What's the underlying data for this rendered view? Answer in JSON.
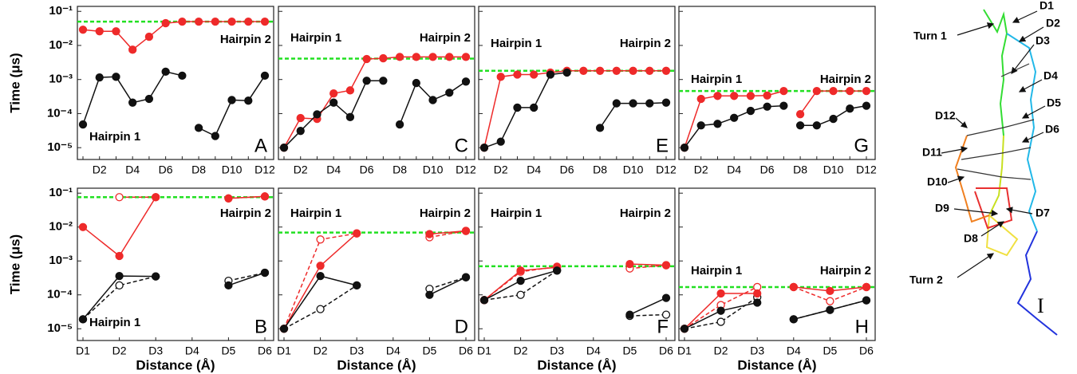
{
  "chart_data": [
    {
      "type": "line",
      "panel_label": "A",
      "annotations": [
        "Hairpin 2",
        "Hairpin 1"
      ],
      "ylabel": "Time (μs)",
      "categories": [
        null,
        "D2",
        null,
        "D4",
        null,
        "D6",
        null,
        "D8",
        null,
        "D10",
        null,
        "D12"
      ],
      "log_y": true,
      "ylim": [
        4.5e-06,
        0.14
      ],
      "show_ytick_labels": true,
      "yticks": [
        {
          "value": 0.1,
          "label": "10⁻¹"
        },
        {
          "value": 0.01,
          "label": "10⁻²"
        },
        {
          "value": 0.001,
          "label": "10⁻³"
        },
        {
          "value": 0.0001,
          "label": "10⁻⁴"
        },
        {
          "value": 1e-05,
          "label": "10⁻⁵"
        }
      ],
      "reference_line": {
        "value": 0.05,
        "color": "#22e022"
      },
      "series": [
        {
          "color": "#ee2a2a",
          "style": "solid",
          "marker": "filled",
          "values": [
            0.029,
            0.026,
            0.026,
            0.0075,
            0.018,
            0.045,
            0.05,
            0.05,
            0.05,
            0.05,
            0.05,
            0.05
          ]
        },
        {
          "color": "#111111",
          "style": "solid",
          "marker": "filled",
          "values": [
            4.8e-05,
            0.00115,
            0.0012,
            0.00021,
            0.00027,
            0.0017,
            0.0013,
            null,
            null,
            null,
            null,
            null
          ]
        },
        {
          "color": "#111111",
          "style": "solid",
          "marker": "filled",
          "values": [
            null,
            null,
            null,
            null,
            null,
            null,
            null,
            3.8e-05,
            2.2e-05,
            0.00025,
            0.00024,
            0.0013
          ]
        }
      ]
    },
    {
      "type": "line",
      "panel_label": "B",
      "annotations": [
        "Hairpin 2",
        "Hairpin 1"
      ],
      "ylabel": "Time (μs)",
      "xlabel": "Distance (Å)",
      "categories": [
        "D1",
        "D2",
        "D3",
        "D4",
        "D5",
        "D6"
      ],
      "log_y": true,
      "ylim": [
        4.5e-06,
        0.14
      ],
      "show_ytick_labels": true,
      "yticks": [
        {
          "value": 0.1,
          "label": "10⁻¹"
        },
        {
          "value": 0.01,
          "label": "10⁻²"
        },
        {
          "value": 0.001,
          "label": "10⁻³"
        },
        {
          "value": 0.0001,
          "label": "10⁻⁴"
        },
        {
          "value": 1e-05,
          "label": "10⁻⁵"
        }
      ],
      "reference_line": {
        "value": 0.076,
        "color": "#22e022"
      },
      "series": [
        {
          "color": "#ee2a2a",
          "style": "dashed",
          "marker": "open",
          "values": [
            null,
            0.076,
            0.076,
            null,
            0.07,
            0.08
          ]
        },
        {
          "color": "#111111",
          "style": "dashed",
          "marker": "open",
          "values": [
            1.9e-05,
            0.00019,
            0.00035,
            null,
            0.00026,
            0.00045
          ]
        },
        {
          "color": "#ee2a2a",
          "style": "solid",
          "marker": "filled",
          "values": [
            0.01,
            0.0014,
            0.076,
            null,
            0.07,
            0.08
          ]
        },
        {
          "color": "#111111",
          "style": "solid",
          "marker": "filled",
          "values": [
            1.9e-05,
            0.00036,
            0.00035,
            null,
            0.00019,
            0.00045
          ]
        }
      ]
    },
    {
      "type": "line",
      "panel_label": "C",
      "annotations": [
        "Hairpin 1",
        "Hairpin 2"
      ],
      "categories": [
        null,
        "D2",
        null,
        "D4",
        null,
        "D6",
        null,
        "D8",
        null,
        "D10",
        null,
        "D12"
      ],
      "log_y": true,
      "ylim": [
        4.5e-06,
        0.14
      ],
      "show_ytick_labels": false,
      "yticks": [
        0.1,
        0.01,
        0.001,
        0.0001,
        1e-05
      ],
      "reference_line": {
        "value": 0.0041,
        "color": "#22e022"
      },
      "series": [
        {
          "color": "#ee2a2a",
          "style": "solid",
          "marker": "filled",
          "values": [
            1e-05,
            7.4e-05,
            7e-05,
            0.00039,
            0.00048,
            0.004,
            0.0042,
            0.0046,
            0.0046,
            0.0046,
            0.0046,
            0.0046
          ]
        },
        {
          "color": "#111111",
          "style": "solid",
          "marker": "filled",
          "values": [
            1e-05,
            3.1e-05,
            9.5e-05,
            0.00021,
            7.9e-05,
            0.00092,
            0.00092,
            null,
            null,
            null,
            null,
            null
          ]
        },
        {
          "color": "#111111",
          "style": "solid",
          "marker": "filled",
          "values": [
            null,
            null,
            null,
            null,
            null,
            null,
            null,
            4.8e-05,
            0.00079,
            0.00025,
            0.00041,
            0.00087
          ]
        }
      ]
    },
    {
      "type": "line",
      "panel_label": "D",
      "annotations": [
        "Hairpin 1",
        "Hairpin 2"
      ],
      "xlabel": "Distance (Å)",
      "categories": [
        "D1",
        "D2",
        "D3",
        "D4",
        "D5",
        "D6"
      ],
      "log_y": true,
      "ylim": [
        4.5e-06,
        0.14
      ],
      "show_ytick_labels": false,
      "yticks": [
        0.1,
        0.01,
        0.001,
        0.0001,
        1e-05
      ],
      "reference_line": {
        "value": 0.0069,
        "color": "#22e022"
      },
      "series": [
        {
          "color": "#ee2a2a",
          "style": "dashed",
          "marker": "open",
          "values": [
            1e-05,
            0.0043,
            0.0065,
            null,
            0.005,
            0.0077
          ]
        },
        {
          "color": "#111111",
          "style": "dashed",
          "marker": "open",
          "values": [
            1e-05,
            3.8e-05,
            0.00019,
            null,
            0.00015,
            0.00033
          ]
        },
        {
          "color": "#ee2a2a",
          "style": "solid",
          "marker": "filled",
          "values": [
            1e-05,
            0.00072,
            0.0065,
            null,
            0.0062,
            0.0077
          ]
        },
        {
          "color": "#111111",
          "style": "solid",
          "marker": "filled",
          "values": [
            1e-05,
            0.00036,
            0.00019,
            null,
            0.0001,
            0.00033
          ]
        }
      ]
    },
    {
      "type": "line",
      "panel_label": "E",
      "annotations": [
        "Hairpin 1",
        "Hairpin 2"
      ],
      "categories": [
        null,
        "D2",
        null,
        "D4",
        null,
        "D6",
        null,
        "D8",
        null,
        "D10",
        null,
        "D12"
      ],
      "log_y": true,
      "ylim": [
        4.5e-06,
        0.14
      ],
      "show_ytick_labels": false,
      "yticks": [
        0.1,
        0.01,
        0.001,
        0.0001,
        1e-05
      ],
      "reference_line": {
        "value": 0.0018,
        "color": "#22e022"
      },
      "series": [
        {
          "color": "#ee2a2a",
          "style": "solid",
          "marker": "filled",
          "values": [
            1e-05,
            0.0012,
            0.0014,
            0.0014,
            0.0016,
            0.0018,
            0.0018,
            0.0018,
            0.0018,
            0.0018,
            0.0018,
            0.0018
          ]
        },
        {
          "color": "#111111",
          "style": "solid",
          "marker": "filled",
          "values": [
            1e-05,
            1.5e-05,
            0.00015,
            0.00015,
            0.0014,
            0.0016,
            null,
            null,
            null,
            null,
            null,
            null
          ]
        },
        {
          "color": "#111111",
          "style": "solid",
          "marker": "filled",
          "values": [
            null,
            null,
            null,
            null,
            null,
            null,
            null,
            3.8e-05,
            0.0002,
            0.0002,
            0.0002,
            0.00021
          ]
        }
      ]
    },
    {
      "type": "line",
      "panel_label": "F",
      "annotations": [
        "Hairpin 1",
        "Hairpin 2"
      ],
      "xlabel": "Distance (Å)",
      "categories": [
        "D1",
        "D2",
        "D3",
        "D4",
        "D5",
        "D6"
      ],
      "log_y": true,
      "ylim": [
        4.5e-06,
        0.14
      ],
      "show_ytick_labels": false,
      "yticks": [
        0.1,
        0.01,
        0.001,
        0.0001,
        1e-05
      ],
      "reference_line": {
        "value": 0.0007,
        "color": "#22e022"
      },
      "series": [
        {
          "color": "#ee2a2a",
          "style": "dashed",
          "marker": "open",
          "values": [
            7e-05,
            0.00048,
            0.00068,
            null,
            0.0006,
            0.00075
          ]
        },
        {
          "color": "#111111",
          "style": "dashed",
          "marker": "open",
          "values": [
            7e-05,
            0.0001,
            0.00052,
            null,
            2.4e-05,
            2.6e-05
          ]
        },
        {
          "color": "#ee2a2a",
          "style": "solid",
          "marker": "filled",
          "values": [
            7e-05,
            0.00052,
            0.00065,
            null,
            0.00081,
            0.00075
          ]
        },
        {
          "color": "#111111",
          "style": "solid",
          "marker": "filled",
          "values": [
            7e-05,
            0.00026,
            0.00052,
            null,
            2.6e-05,
            8.1e-05
          ]
        }
      ]
    },
    {
      "type": "line",
      "panel_label": "G",
      "annotations": [
        "Hairpin 1",
        "Hairpin 2"
      ],
      "categories": [
        null,
        "D2",
        null,
        "D4",
        null,
        "D6",
        null,
        "D8",
        null,
        "D10",
        null,
        "D12"
      ],
      "log_y": true,
      "ylim": [
        4.5e-06,
        0.14
      ],
      "show_ytick_labels": false,
      "yticks": [
        0.1,
        0.01,
        0.001,
        0.0001,
        1e-05
      ],
      "reference_line": {
        "value": 0.00046,
        "color": "#22e022"
      },
      "series": [
        {
          "color": "#ee2a2a",
          "style": "solid",
          "marker": "filled",
          "values": [
            1e-05,
            0.00027,
            0.00033,
            0.00033,
            0.00033,
            0.00034,
            0.00046,
            null,
            null,
            null,
            null,
            null
          ]
        },
        {
          "color": "#ee2a2a",
          "style": "solid",
          "marker": "filled",
          "values": [
            null,
            null,
            null,
            null,
            null,
            null,
            null,
            9.6e-05,
            0.00046,
            0.00046,
            0.00046,
            0.00046
          ]
        },
        {
          "color": "#111111",
          "style": "solid",
          "marker": "filled",
          "values": [
            1e-05,
            4.5e-05,
            5e-05,
            7.5e-05,
            0.00012,
            0.00016,
            0.00017,
            null,
            null,
            null,
            null,
            null
          ]
        },
        {
          "color": "#111111",
          "style": "solid",
          "marker": "filled",
          "values": [
            null,
            null,
            null,
            null,
            null,
            null,
            null,
            4.5e-05,
            4.5e-05,
            7e-05,
            0.00014,
            0.00017
          ]
        }
      ]
    },
    {
      "type": "line",
      "panel_label": "H",
      "annotations": [
        "Hairpin 1",
        "Hairpin 2"
      ],
      "xlabel": "Distance (Å)",
      "categories": [
        "D1",
        "D2",
        "D3",
        "D4",
        "D5",
        "D6"
      ],
      "log_y": true,
      "ylim": [
        4.5e-06,
        0.14
      ],
      "show_ytick_labels": false,
      "yticks": [
        0.1,
        0.01,
        0.001,
        0.0001,
        1e-05
      ],
      "reference_line": {
        "value": 0.00017,
        "color": "#22e022"
      },
      "series": [
        {
          "color": "#ee2a2a",
          "style": "dashed",
          "marker": "open",
          "values": [
            1e-05,
            5e-05,
            0.00017,
            null,
            null,
            null
          ]
        },
        {
          "color": "#ee2a2a",
          "style": "dashed",
          "marker": "open",
          "values": [
            null,
            null,
            null,
            0.00017,
            6.5e-05,
            0.00017
          ]
        },
        {
          "color": "#111111",
          "style": "dashed",
          "marker": "open",
          "values": [
            1e-05,
            1.6e-05,
            8.5e-05,
            null,
            null,
            null
          ]
        },
        {
          "color": "#111111",
          "style": "dashed",
          "marker": "open",
          "values": [
            null,
            null,
            null,
            1.9e-05,
            3.6e-05,
            6.9e-05
          ]
        },
        {
          "color": "#ee2a2a",
          "style": "solid",
          "marker": "filled",
          "values": [
            1e-05,
            0.00011,
            0.00011,
            null,
            null,
            null
          ]
        },
        {
          "color": "#ee2a2a",
          "style": "solid",
          "marker": "filled",
          "values": [
            null,
            null,
            null,
            0.00017,
            0.00013,
            0.00017
          ]
        },
        {
          "color": "#111111",
          "style": "solid",
          "marker": "filled",
          "values": [
            1e-05,
            3.4e-05,
            5.9e-05,
            null,
            null,
            null
          ]
        },
        {
          "color": "#111111",
          "style": "solid",
          "marker": "filled",
          "values": [
            null,
            null,
            null,
            1.9e-05,
            3.6e-05,
            6.9e-05
          ]
        }
      ]
    }
  ],
  "diagram": {
    "labels": [
      "D1",
      "D2",
      "D3",
      "D4",
      "D5",
      "D6",
      "D7",
      "D8",
      "D9",
      "D10",
      "D11",
      "D12",
      "Turn 1",
      "Turn 2"
    ],
    "panel_label": "I"
  }
}
